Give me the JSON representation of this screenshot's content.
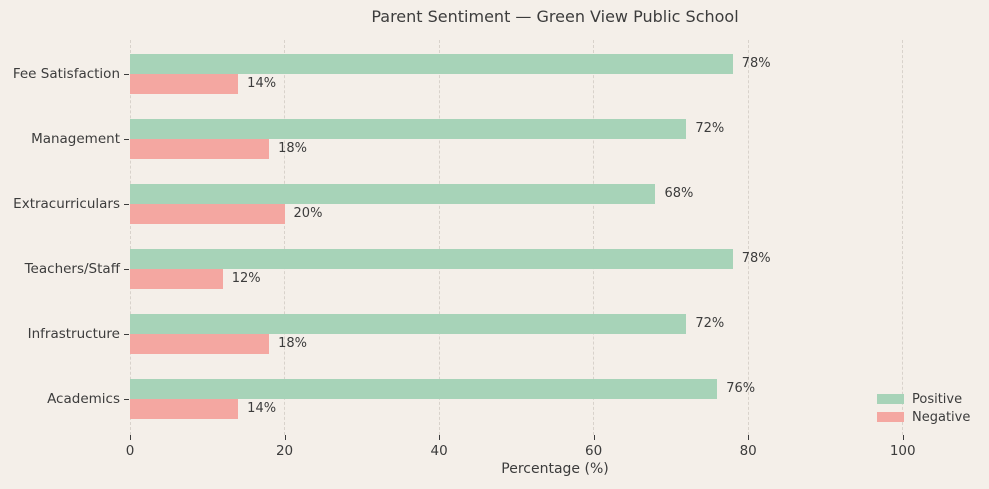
{
  "chart_data": {
    "type": "bar",
    "orientation": "horizontal",
    "title": "Parent Sentiment — Green View Public School",
    "xlabel": "Percentage (%)",
    "categories": [
      "Fee Satisfaction",
      "Management",
      "Extracurriculars",
      "Teachers/Staff",
      "Infrastructure",
      "Academics"
    ],
    "series": [
      {
        "name": "Positive",
        "color": "#a7d3b8",
        "values": [
          78,
          72,
          68,
          78,
          72,
          76
        ]
      },
      {
        "name": "Negative",
        "color": "#f4a7a1",
        "values": [
          14,
          18,
          20,
          12,
          18,
          14
        ]
      }
    ],
    "value_label_suffix": "%",
    "x_ticks": [
      0,
      20,
      40,
      60,
      80,
      100
    ],
    "xlim": [
      0,
      110
    ],
    "grid": "vertical-dashed",
    "legend_position": "right-bottom"
  },
  "colors": {
    "background": "#f4efe9",
    "grid": "#d8d2cb",
    "text": "#3c3c3c"
  }
}
